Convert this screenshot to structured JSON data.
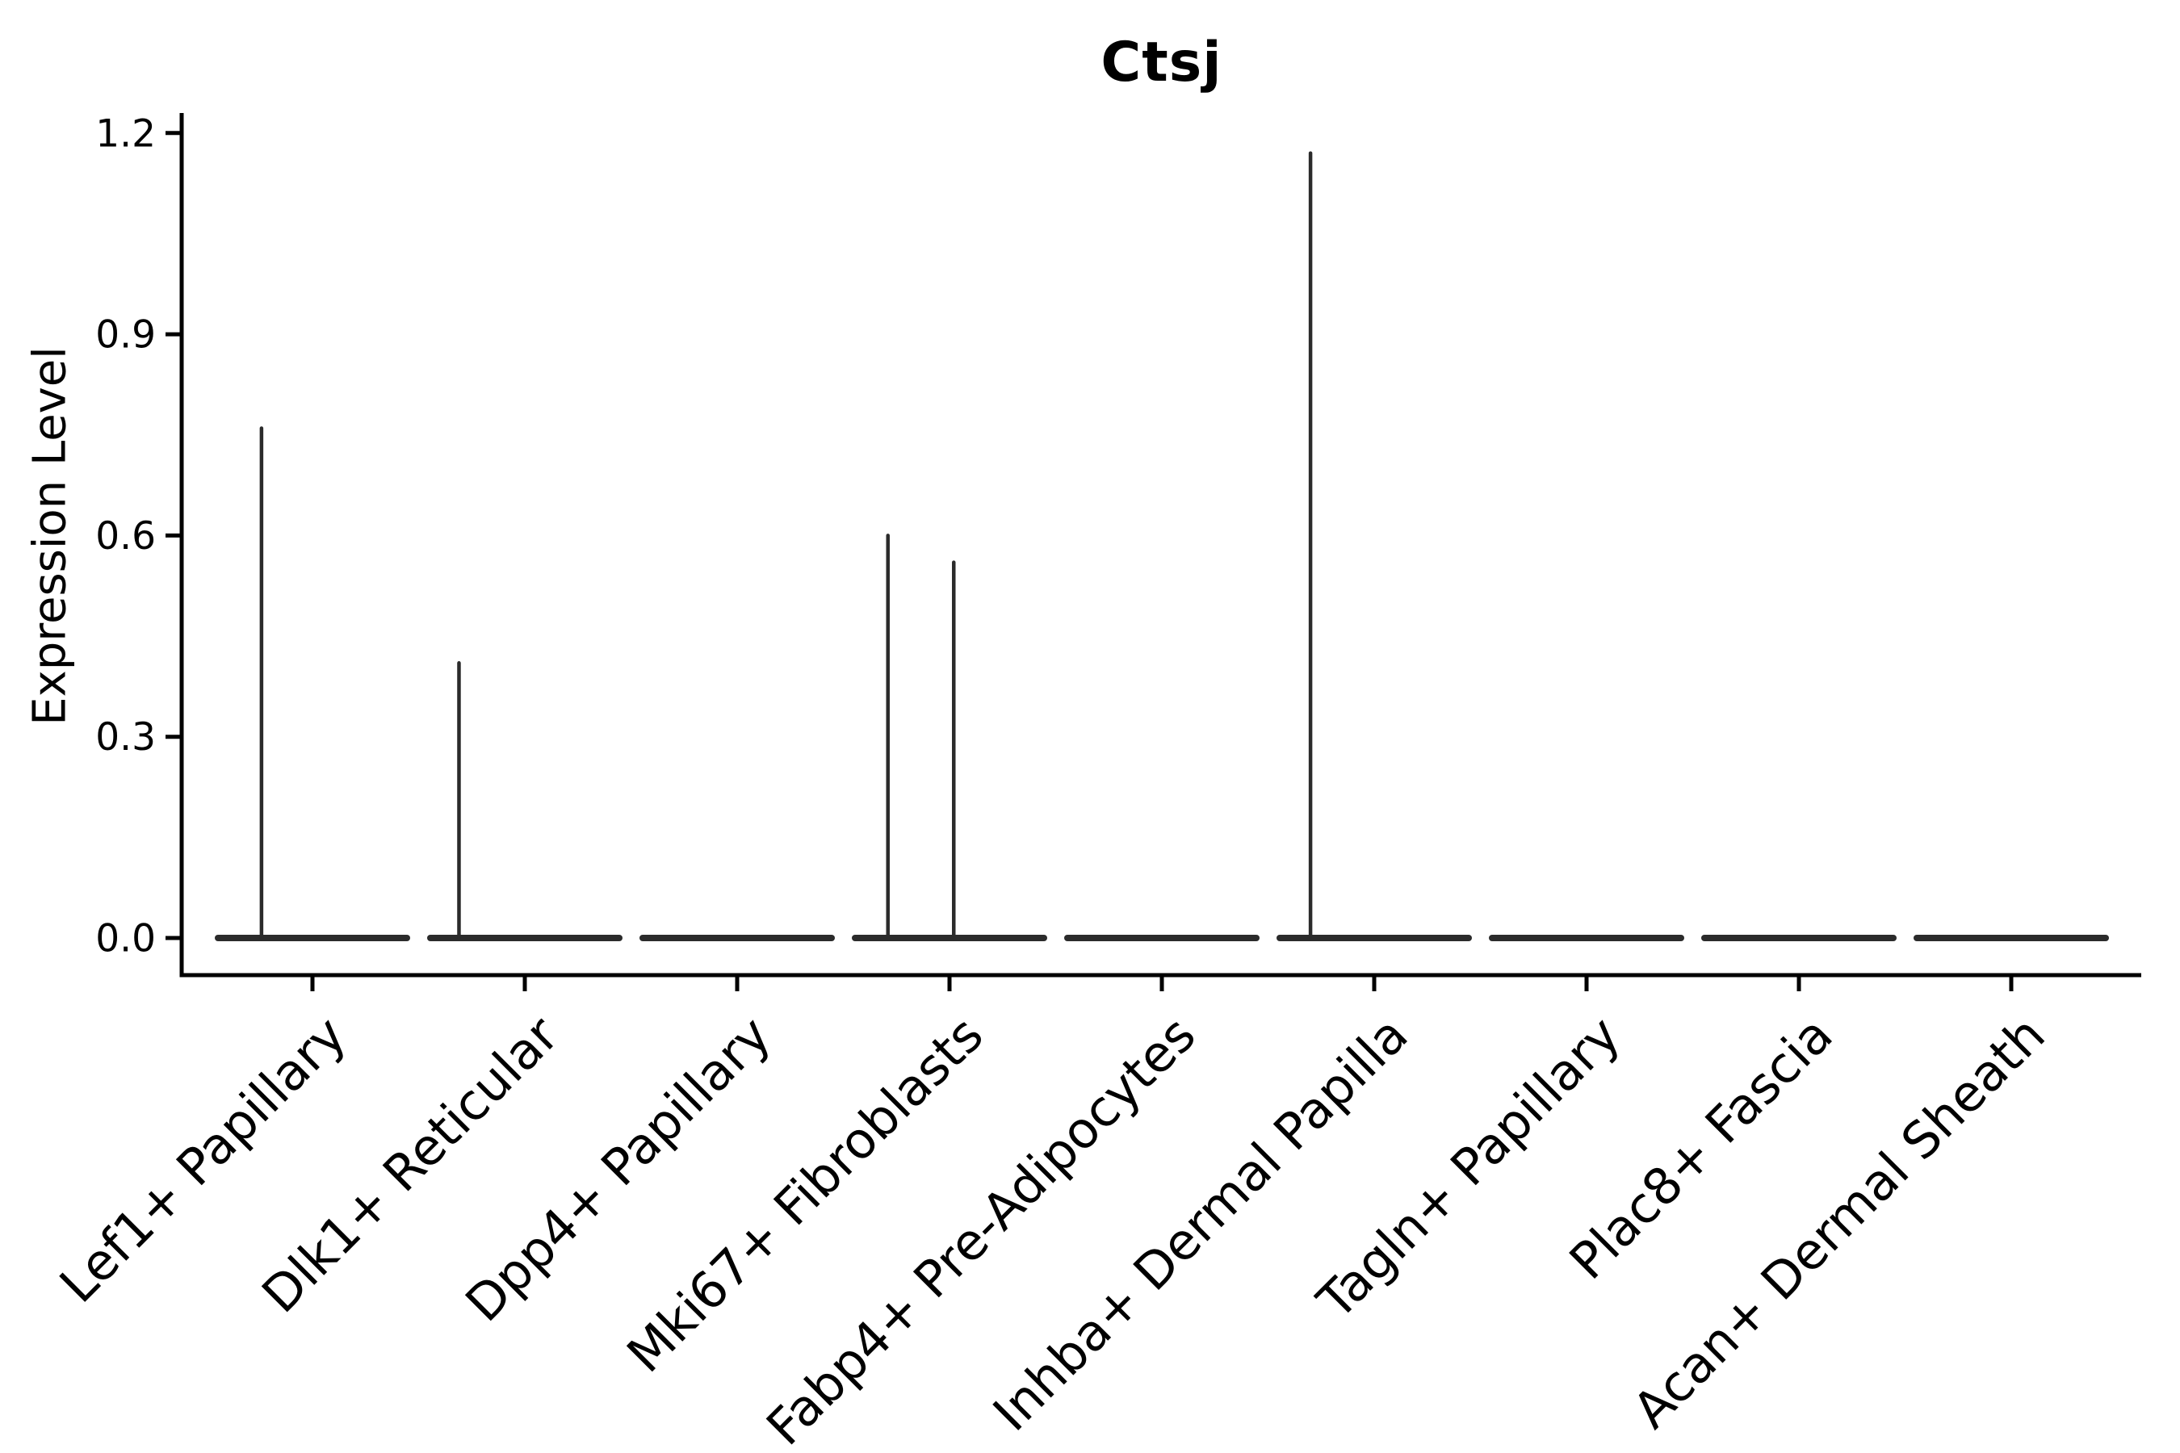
{
  "page": {
    "background": "#ffffff"
  },
  "chart_data": {
    "type": "violin",
    "title": "Ctsj",
    "xlabel": "",
    "ylabel": "Expression Level",
    "categories": [
      "Lef1+ Papillary",
      "Dlk1+ Reticular",
      "Dpp4+ Papillary",
      "Mki67+ Fibroblasts",
      "Fabp4+ Pre-Adipocytes",
      "Inhba+ Dermal Papilla",
      "Tagln+ Papillary",
      "Plac8+ Fascia",
      "Acan+ Dermal Sheath"
    ],
    "x_tick_rotation_deg": 45,
    "ylim": [
      0.0,
      1.2
    ],
    "ytick_labels": [
      "0.0",
      "0.3",
      "0.6",
      "0.9",
      "1.2"
    ],
    "ytick_values": [
      0.0,
      0.3,
      0.6,
      0.9,
      1.2
    ],
    "grid": false,
    "legend": "none",
    "series": [
      {
        "category": "Lef1+ Papillary",
        "max_expression": 0.76,
        "spikes": [
          {
            "value": 0.76,
            "offset": -0.24
          }
        ]
      },
      {
        "category": "Dlk1+ Reticular",
        "max_expression": 0.41,
        "spikes": [
          {
            "value": 0.41,
            "offset": -0.31
          }
        ]
      },
      {
        "category": "Dpp4+ Papillary",
        "max_expression": 0.0,
        "spikes": []
      },
      {
        "category": "Mki67+ Fibroblasts",
        "max_expression": 0.6,
        "spikes": [
          {
            "value": 0.6,
            "offset": -0.29
          },
          {
            "value": 0.56,
            "offset": 0.02
          }
        ]
      },
      {
        "category": "Fabp4+ Pre-Adipocytes",
        "max_expression": 0.0,
        "spikes": []
      },
      {
        "category": "Inhba+ Dermal Papilla",
        "max_expression": 1.17,
        "spikes": [
          {
            "value": 1.17,
            "offset": -0.3
          }
        ]
      },
      {
        "category": "Tagln+ Papillary",
        "max_expression": 0.0,
        "spikes": []
      },
      {
        "category": "Plac8+ Fascia",
        "max_expression": 0.0,
        "spikes": []
      },
      {
        "category": "Acan+ Dermal Sheath",
        "max_expression": 0.0,
        "spikes": []
      }
    ],
    "colors": {
      "violin": "#2b2b2b",
      "axis": "#000000",
      "text": "#000000"
    }
  }
}
